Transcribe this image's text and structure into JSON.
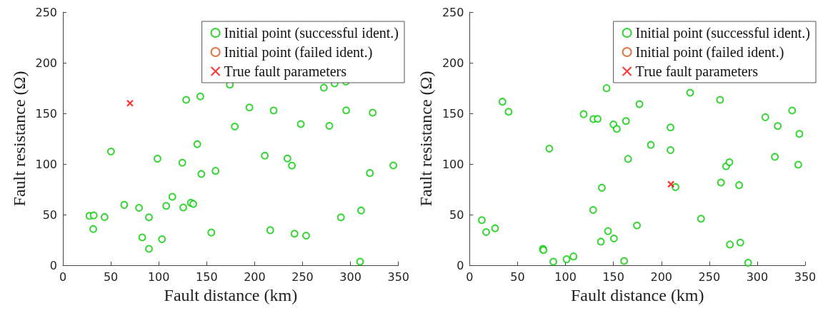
{
  "chart_data": [
    {
      "type": "scatter",
      "xlabel": "Fault distance (km)",
      "ylabel": "Fault resistance (Ω)",
      "xlim": [
        0,
        350
      ],
      "xticks": [
        0,
        50,
        100,
        150,
        200,
        250,
        300,
        350
      ],
      "ylim": [
        0,
        250
      ],
      "yticks": [
        0,
        50,
        100,
        150,
        200,
        250
      ],
      "grid": false,
      "legend": "top right",
      "series": [
        {
          "name": "Initial point (successful ident.)",
          "color": "#00cc00",
          "marker": "circle",
          "x": [
            27.7,
            32.1,
            31.7,
            43.5,
            50.2,
            64.0,
            79.4,
            82.8,
            89.8,
            89.8,
            98.7,
            103.4,
            107.8,
            114.2,
            124.6,
            125.6,
            128.6,
            133.5,
            136.0,
            140.2,
            143.4,
            144.4,
            154.8,
            159.2,
            174.1,
            179.3,
            194.6,
            210.6,
            216.3,
            219.8,
            234.2,
            238.9,
            241.6,
            248.2,
            253.7,
            272.2,
            277.9,
            283.4,
            290.0,
            295.5,
            295.2,
            310.0,
            311.0,
            320.2,
            323.1,
            344.7
          ],
          "values": [
            48.7,
            49.2,
            35.8,
            47.6,
            112.3,
            59.6,
            56.7,
            27.5,
            47.3,
            16.2,
            105.2,
            25.7,
            58.6,
            67.6,
            101.2,
            57.0,
            163.4,
            61.7,
            60.5,
            119.6,
            166.7,
            90.2,
            32.3,
            93.2,
            178.4,
            137.0,
            155.8,
            108.3,
            34.6,
            152.8,
            105.5,
            98.4,
            31.1,
            139.4,
            29.2,
            175.4,
            137.7,
            179.6,
            47.3,
            153.0,
            181.3,
            3.5,
            54.1,
            91.1,
            150.7,
            98.6
          ]
        },
        {
          "name": "Initial point (failed ident.)",
          "color": "#d95319",
          "marker": "circle"
        },
        {
          "name": "True fault parameters",
          "color": "#ff0000",
          "marker": "cross",
          "x": [
            70
          ],
          "values": [
            160
          ]
        }
      ]
    },
    {
      "type": "scatter",
      "xlabel": "Fault distance (km)",
      "ylabel": "Fault resistance (Ω)",
      "xlim": [
        0,
        350
      ],
      "xticks": [
        0,
        50,
        100,
        150,
        200,
        250,
        300,
        350
      ],
      "ylim": [
        0,
        250
      ],
      "yticks": [
        0,
        50,
        100,
        150,
        200,
        250
      ],
      "grid": false,
      "legend": "top right",
      "series": [
        {
          "name": "Initial point (successful ident.)",
          "color": "#00cc00",
          "marker": "circle",
          "x": [
            12.7,
            17.2,
            26.5,
            34.2,
            40.6,
            76.4,
            77.0,
            83.1,
            87.3,
            101.1,
            108.3,
            118.9,
            128.8,
            129.0,
            133.5,
            136.9,
            137.9,
            142.8,
            144.3,
            150.0,
            150.5,
            153.5,
            161.1,
            163.1,
            165.3,
            174.5,
            177.1,
            189.0,
            209.5,
            209.5,
            214.7,
            230.0,
            241.4,
            261.2,
            262.2,
            267.6,
            271.0,
            271.5,
            281.1,
            282.4,
            290.5,
            308.5,
            321.4,
            318.4,
            336.4,
            344.0,
            342.8
          ],
          "values": [
            44.5,
            32.7,
            36.5,
            161.5,
            151.6,
            16.2,
            15.0,
            115.1,
            3.5,
            5.9,
            8.7,
            149.2,
            54.6,
            144.3,
            144.5,
            23.3,
            76.5,
            174.9,
            33.7,
            139.1,
            26.4,
            134.7,
            4.2,
            142.4,
            105.0,
            39.3,
            159.1,
            118.9,
            136.1,
            113.7,
            77.2,
            170.4,
            45.9,
            163.4,
            81.7,
            97.7,
            101.7,
            20.5,
            79.1,
            22.4,
            2.4,
            146.2,
            137.5,
            107.1,
            152.8,
            129.7,
            99.3
          ]
        },
        {
          "name": "Initial point (failed ident.)",
          "color": "#d95319",
          "marker": "circle"
        },
        {
          "name": "True fault parameters",
          "color": "#ff0000",
          "marker": "cross",
          "x": [
            210
          ],
          "values": [
            80
          ]
        }
      ]
    }
  ]
}
